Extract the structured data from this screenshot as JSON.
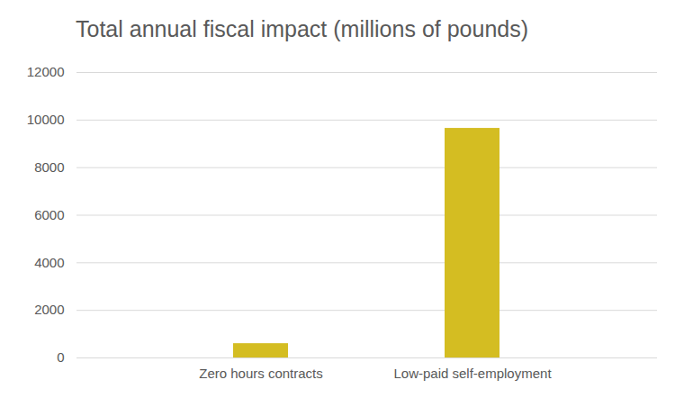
{
  "chart_data": {
    "type": "bar",
    "title": "Total annual fiscal impact (millions of pounds)",
    "categories": [
      "Zero hours contracts",
      "Low-paid self-employment"
    ],
    "values": [
      600,
      9650
    ],
    "color": "#d4bd22",
    "ylim": [
      0,
      12000
    ],
    "yticks": [
      0,
      2000,
      4000,
      6000,
      8000,
      10000,
      12000
    ],
    "grid": true
  }
}
